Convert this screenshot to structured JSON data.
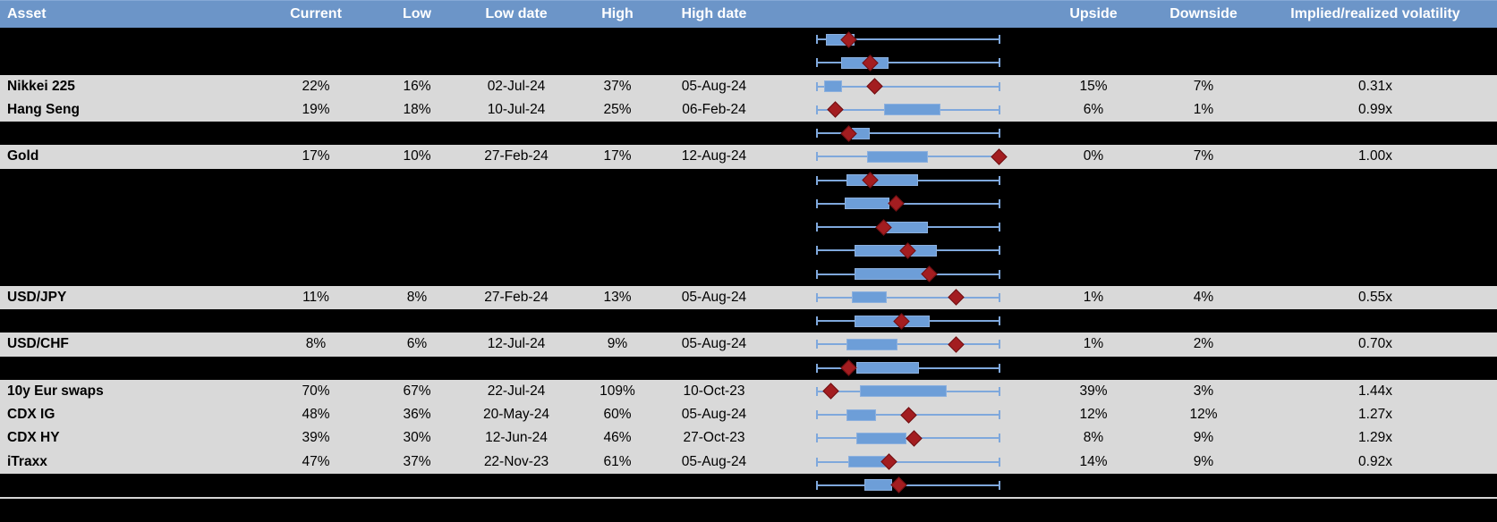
{
  "colors": {
    "header_bg": "#6C95C8",
    "header_text": "#FFFFFF",
    "row_gray": "#D9D9D9",
    "row_black": "#000000",
    "whisker_blue": "#7FA8DC",
    "box_fill_blue": "#6D9ED8",
    "box_border_blue": "#8CB0DE",
    "diamond_red": "#A31D20",
    "diamond_border_red": "#701012",
    "separator_gray": "#D5D5D5",
    "body_text": "#000000"
  },
  "header": {
    "asset": "Asset",
    "current": "Current",
    "low": "Low",
    "low_date": "Low date",
    "high": "High",
    "high_date": "High date",
    "upside": "Upside",
    "downside": "Downside",
    "vol": "Implied/realized volatility"
  },
  "rows": [
    {
      "type": "black",
      "plot": {
        "box": [
          0.049,
          0.206
        ],
        "diamond": 0.172
      }
    },
    {
      "type": "black",
      "plot": {
        "box": [
          0.132,
          0.392
        ],
        "diamond": 0.289
      }
    },
    {
      "type": "gray",
      "label": "Nikkei 225",
      "current": "22%",
      "low": "16%",
      "low_date": "02-Jul-24",
      "high": "37%",
      "high_date": "05-Aug-24",
      "upside": "15%",
      "downside": "7%",
      "vol": "0.31x",
      "plot": {
        "box": [
          0.039,
          0.137
        ],
        "diamond": 0.314
      }
    },
    {
      "type": "gray",
      "label": "Hang Seng",
      "current": "19%",
      "low": "18%",
      "low_date": "10-Jul-24",
      "high": "25%",
      "high_date": "06-Feb-24",
      "upside": "6%",
      "downside": "1%",
      "vol": "0.99x",
      "plot": {
        "box": [
          0.368,
          0.677
        ],
        "diamond": 0.098
      }
    },
    {
      "type": "black",
      "plot": {
        "box": [
          0.191,
          0.289
        ],
        "diamond": 0.172
      }
    },
    {
      "type": "gray",
      "label": "Gold",
      "current": "17%",
      "low": "10%",
      "low_date": "27-Feb-24",
      "high": "17%",
      "high_date": "12-Aug-24",
      "upside": "0%",
      "downside": "7%",
      "vol": "1.00x",
      "plot": {
        "box": [
          0.275,
          0.608
        ],
        "diamond": 0.995
      }
    },
    {
      "type": "black",
      "plot": {
        "box": [
          0.162,
          0.554
        ],
        "diamond": 0.289
      }
    },
    {
      "type": "black",
      "plot": {
        "box": [
          0.152,
          0.397
        ],
        "diamond": 0.436
      }
    },
    {
      "type": "black",
      "plot": {
        "box": [
          0.378,
          0.608
        ],
        "diamond": 0.363
      }
    },
    {
      "type": "black",
      "plot": {
        "box": [
          0.206,
          0.657
        ],
        "diamond": 0.495
      }
    },
    {
      "type": "black",
      "plot": {
        "box": [
          0.206,
          0.613
        ],
        "diamond": 0.613
      }
    },
    {
      "type": "gray",
      "label": "USD/JPY",
      "current": "11%",
      "low": "8%",
      "low_date": "27-Feb-24",
      "high": "13%",
      "high_date": "05-Aug-24",
      "upside": "1%",
      "downside": "4%",
      "vol": "0.55x",
      "plot": {
        "box": [
          0.191,
          0.382
        ],
        "diamond": 0.76
      }
    },
    {
      "type": "black",
      "plot": {
        "box": [
          0.206,
          0.618
        ],
        "diamond": 0.461
      }
    },
    {
      "type": "gray",
      "label": "USD/CHF",
      "current": "8%",
      "low": "6%",
      "low_date": "12-Jul-24",
      "high": "9%",
      "high_date": "05-Aug-24",
      "upside": "1%",
      "downside": "2%",
      "vol": "0.70x",
      "plot": {
        "box": [
          0.162,
          0.441
        ],
        "diamond": 0.76
      }
    },
    {
      "type": "black",
      "plot": {
        "box": [
          0.216,
          0.559
        ],
        "diamond": 0.176
      }
    },
    {
      "type": "gray",
      "label": "10y Eur swaps",
      "current": "70%",
      "low": "67%",
      "low_date": "22-Jul-24",
      "high": "109%",
      "high_date": "10-Oct-23",
      "upside": "39%",
      "downside": "3%",
      "vol": "1.44x",
      "plot": {
        "box": [
          0.235,
          0.711
        ],
        "diamond": 0.074
      }
    },
    {
      "type": "gray",
      "label": "CDX IG",
      "current": "48%",
      "low": "36%",
      "low_date": "20-May-24",
      "high": "60%",
      "high_date": "05-Aug-24",
      "upside": "12%",
      "downside": "12%",
      "vol": "1.27x",
      "plot": {
        "box": [
          0.162,
          0.324
        ],
        "diamond": 0.5
      }
    },
    {
      "type": "gray",
      "label": "CDX HY",
      "current": "39%",
      "low": "30%",
      "low_date": "12-Jun-24",
      "high": "46%",
      "high_date": "27-Oct-23",
      "upside": "8%",
      "downside": "9%",
      "vol": "1.29x",
      "plot": {
        "box": [
          0.216,
          0.49
        ],
        "diamond": 0.534
      }
    },
    {
      "type": "gray",
      "label": "iTraxx",
      "current": "47%",
      "low": "37%",
      "low_date": "22-Nov-23",
      "high": "61%",
      "high_date": "05-Aug-24",
      "upside": "14%",
      "downside": "9%",
      "vol": "0.92x",
      "plot": {
        "box": [
          0.172,
          0.378
        ],
        "diamond": 0.392
      }
    },
    {
      "type": "black",
      "plot": {
        "box": [
          0.26,
          0.412
        ],
        "diamond": 0.446
      }
    }
  ],
  "chart_data": {
    "type": "boxplot",
    "orientation": "horizontal",
    "legend_position": "none",
    "axis": "each row normalized: whisker left = 1y low, whisker right = 1y high, diamond = current, box = middle range",
    "categories": [
      "Nikkei 225",
      "Hang Seng",
      "Gold",
      "USD/JPY",
      "USD/CHF",
      "10y Eur swaps",
      "CDX IG",
      "CDX HY",
      "iTraxx"
    ],
    "series": [
      {
        "name": "Current (%)",
        "values": [
          22,
          19,
          17,
          11,
          8,
          70,
          48,
          39,
          47
        ]
      },
      {
        "name": "Low (%)",
        "values": [
          16,
          18,
          10,
          8,
          6,
          67,
          36,
          30,
          37
        ]
      },
      {
        "name": "High (%)",
        "values": [
          37,
          25,
          17,
          13,
          9,
          109,
          60,
          46,
          61
        ]
      },
      {
        "name": "Upside (%)",
        "values": [
          15,
          6,
          0,
          1,
          1,
          39,
          12,
          8,
          14
        ]
      },
      {
        "name": "Downside (%)",
        "values": [
          7,
          1,
          7,
          4,
          2,
          3,
          12,
          9,
          9
        ]
      },
      {
        "name": "Implied/realized volatility (x)",
        "values": [
          0.31,
          0.99,
          1.0,
          0.55,
          0.7,
          1.44,
          1.27,
          1.29,
          0.92
        ]
      }
    ],
    "low_dates": [
      "02-Jul-24",
      "10-Jul-24",
      "27-Feb-24",
      "27-Feb-24",
      "12-Jul-24",
      "22-Jul-24",
      "20-May-24",
      "12-Jun-24",
      "22-Nov-23"
    ],
    "high_dates": [
      "05-Aug-24",
      "06-Feb-24",
      "12-Aug-24",
      "05-Aug-24",
      "05-Aug-24",
      "10-Oct-23",
      "05-Aug-24",
      "27-Oct-23",
      "05-Aug-24"
    ]
  }
}
